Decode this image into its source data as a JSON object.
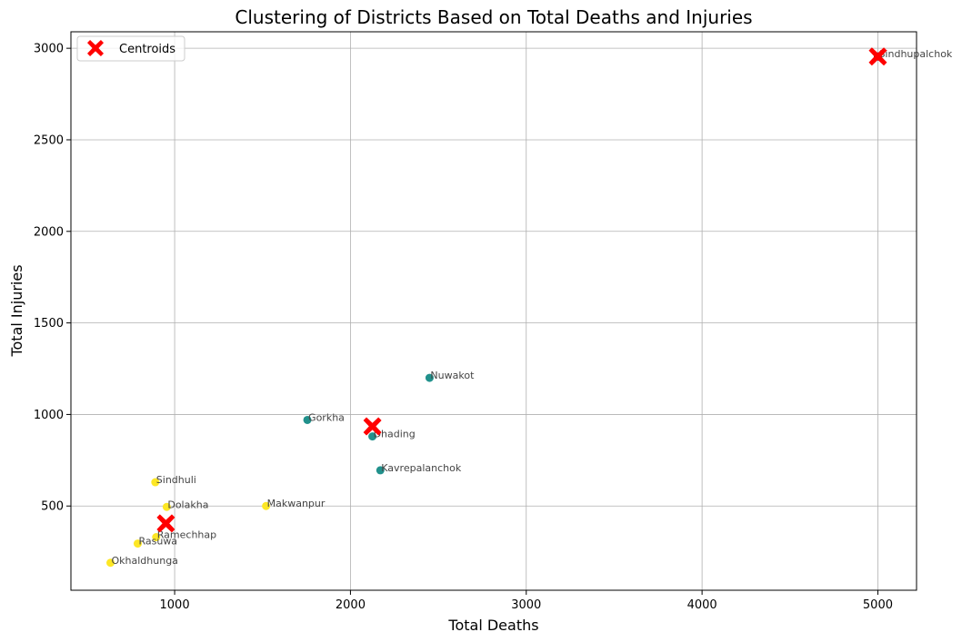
{
  "chart_data": {
    "type": "scatter",
    "title": "Clustering of Districts Based on Total Deaths and Injuries",
    "xlabel": "Total Deaths",
    "ylabel": "Total Injuries",
    "xlim": [
      410,
      5220
    ],
    "ylim": [
      40,
      3090
    ],
    "xticks": [
      1000,
      2000,
      3000,
      4000,
      5000
    ],
    "yticks": [
      500,
      1000,
      1500,
      2000,
      2500,
      3000
    ],
    "grid": true,
    "legend": {
      "placement": "upper-left",
      "entries": [
        "Centroids"
      ]
    },
    "colors": {
      "cluster_low": "#fde725",
      "cluster_mid": "#21918c",
      "cluster_high": "#440154",
      "centroid": "#ff0000"
    },
    "points": [
      {
        "label": "Sindhupalchok",
        "x": 5000,
        "y": 2955,
        "cluster": "high"
      },
      {
        "label": "Nuwakot",
        "x": 2450,
        "y": 1200,
        "cluster": "mid"
      },
      {
        "label": "Gorkha",
        "x": 1755,
        "y": 970,
        "cluster": "mid"
      },
      {
        "label": "Dhading",
        "x": 2125,
        "y": 880,
        "cluster": "mid"
      },
      {
        "label": "Kavrepalanchok",
        "x": 2170,
        "y": 695,
        "cluster": "mid"
      },
      {
        "label": "Sindhuli",
        "x": 890,
        "y": 630,
        "cluster": "low"
      },
      {
        "label": "Dolakha",
        "x": 955,
        "y": 495,
        "cluster": "low"
      },
      {
        "label": "Makwanpur",
        "x": 1520,
        "y": 500,
        "cluster": "low"
      },
      {
        "label": "Ramechhap",
        "x": 895,
        "y": 330,
        "cluster": "low"
      },
      {
        "label": "Rasuwa",
        "x": 790,
        "y": 295,
        "cluster": "low"
      },
      {
        "label": "Okhaldhunga",
        "x": 635,
        "y": 190,
        "cluster": "low"
      }
    ],
    "centroids": [
      {
        "x": 5000,
        "y": 2955
      },
      {
        "x": 2125,
        "y": 935
      },
      {
        "x": 950,
        "y": 405
      }
    ]
  }
}
